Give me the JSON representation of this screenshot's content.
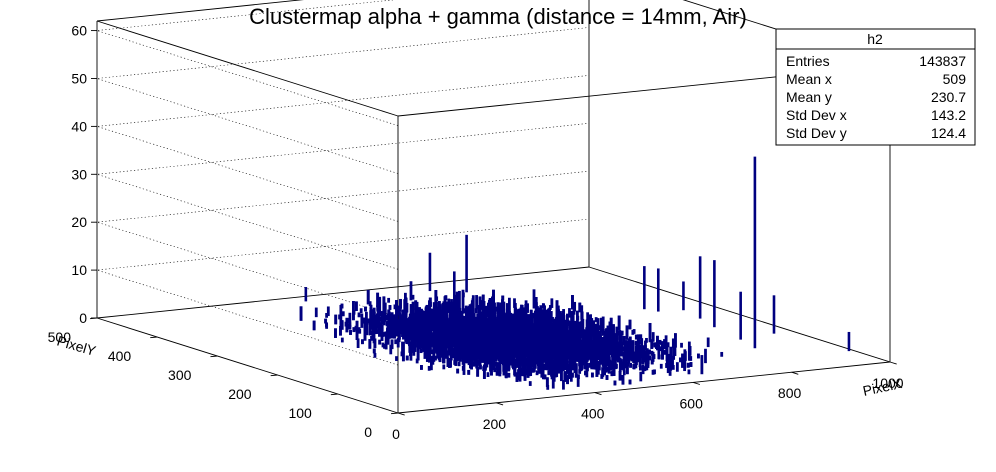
{
  "chart_data": {
    "type": "lego3d-histogram",
    "title": "Clustermap alpha + gamma (distance = 14mm, Air)",
    "xlabel": "PixelX",
    "ylabel": "PixelY",
    "x_ticks": [
      "0",
      "200",
      "400",
      "600",
      "800",
      "1000"
    ],
    "y_ticks": [
      "0",
      "100",
      "200",
      "300",
      "400",
      "500"
    ],
    "z_ticks": [
      "0",
      "10",
      "20",
      "30",
      "40",
      "50",
      "60"
    ],
    "xlim": [
      0,
      1000
    ],
    "ylim": [
      0,
      500
    ],
    "zlim": [
      0,
      62
    ],
    "bar_color": "#000080",
    "tall_peaks": [
      {
        "x": 880,
        "y": 150,
        "z": 10
      },
      {
        "x": 860,
        "y": 110,
        "z": 40
      },
      {
        "x": 640,
        "y": 470,
        "z": 8
      },
      {
        "x": 610,
        "y": 405,
        "z": 7
      },
      {
        "x": 690,
        "y": 450,
        "z": 12
      },
      {
        "x": 900,
        "y": 210,
        "z": 14
      },
      {
        "x": 920,
        "y": 250,
        "z": 13
      },
      {
        "x": 880,
        "y": 310,
        "z": 9
      },
      {
        "x": 890,
        "y": 295,
        "z": 9
      },
      {
        "x": 935,
        "y": 290,
        "z": 6
      },
      {
        "x": 960,
        "y": 160,
        "z": 8
      },
      {
        "x": 990,
        "y": 60,
        "z": 4
      },
      {
        "x": 400,
        "y": 480,
        "z": 3
      }
    ],
    "grid": true
  },
  "stats": {
    "name": "h2",
    "rows": [
      {
        "label": "Entries",
        "value": "143837"
      },
      {
        "label": "Mean x",
        "value": "509"
      },
      {
        "label": "Mean y",
        "value": "230.7"
      },
      {
        "label": "Std Dev x",
        "value": "143.2"
      },
      {
        "label": "Std Dev y",
        "value": "124.4"
      }
    ]
  }
}
